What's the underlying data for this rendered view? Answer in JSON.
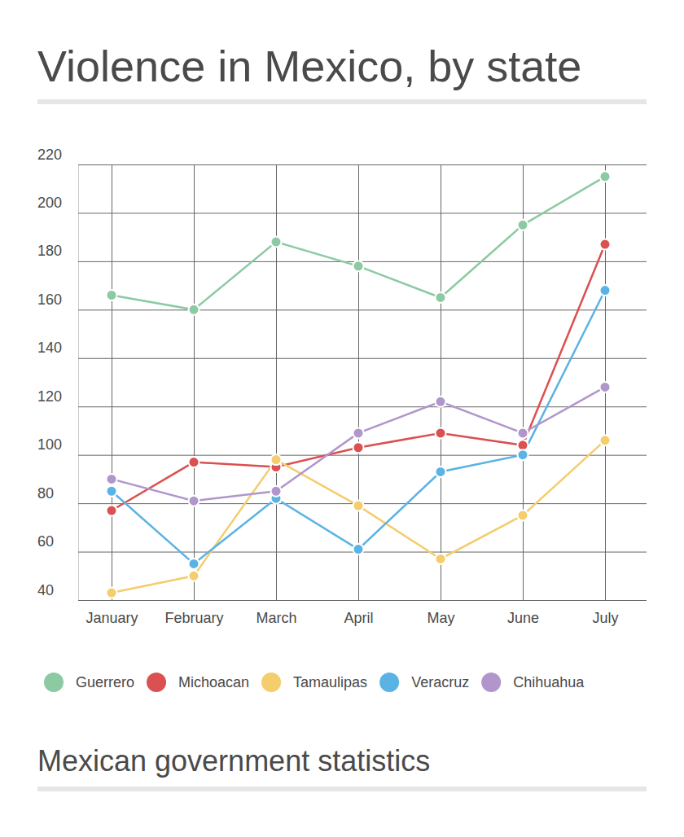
{
  "chart_data": {
    "type": "line",
    "title": "Violence in Mexico, by state",
    "source": "Mexican government statistics",
    "categories": [
      "January",
      "February",
      "March",
      "April",
      "May",
      "June",
      "July"
    ],
    "series": [
      {
        "name": "Guerrero",
        "color": "#8ccaa3",
        "values": [
          166,
          160,
          188,
          178,
          165,
          195,
          215
        ]
      },
      {
        "name": "Michoacan",
        "color": "#db5050",
        "values": [
          77,
          97,
          95,
          103,
          109,
          104,
          187
        ]
      },
      {
        "name": "Tamaulipas",
        "color": "#f4cd6c",
        "values": [
          43,
          50,
          98,
          79,
          57,
          75,
          106
        ]
      },
      {
        "name": "Veracruz",
        "color": "#5ab3e4",
        "values": [
          85,
          55,
          82,
          61,
          93,
          100,
          168
        ]
      },
      {
        "name": "Chihuahua",
        "color": "#b196cc",
        "values": [
          90,
          81,
          85,
          109,
          122,
          109,
          128
        ]
      }
    ],
    "ylim": [
      40,
      220
    ],
    "yticks": [
      40,
      60,
      80,
      100,
      120,
      140,
      160,
      180,
      200,
      220
    ],
    "grid": true,
    "legend": "bottom",
    "marker": "circle",
    "line_style": "solid"
  }
}
